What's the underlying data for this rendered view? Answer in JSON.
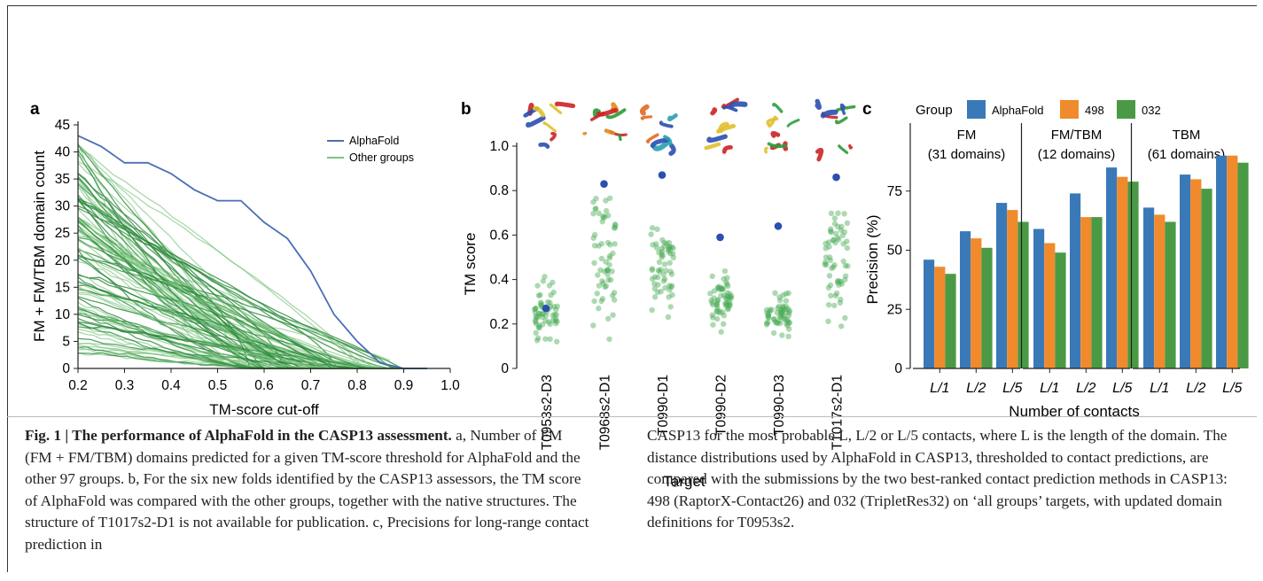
{
  "panels": {
    "a": {
      "label": "a",
      "chart_data": {
        "type": "line",
        "xlabel": "TM-score cut-off",
        "ylabel": "FM + FM/TBM domain count",
        "xlim": [
          0.2,
          1.0
        ],
        "ylim": [
          0,
          45
        ],
        "xticks": [
          "0.2",
          "0.3",
          "0.4",
          "0.5",
          "0.6",
          "0.7",
          "0.8",
          "0.9",
          "1.0"
        ],
        "yticks": [
          "0",
          "5",
          "10",
          "15",
          "20",
          "25",
          "30",
          "35",
          "40",
          "45"
        ],
        "legend": [
          "AlphaFold",
          "Other groups"
        ],
        "series": [
          {
            "name": "AlphaFold",
            "color": "#4a6fb3",
            "x": [
              0.2,
              0.25,
              0.3,
              0.35,
              0.4,
              0.45,
              0.5,
              0.55,
              0.6,
              0.65,
              0.7,
              0.75,
              0.8,
              0.85,
              0.9,
              0.95
            ],
            "y": [
              43,
              41,
              38,
              38,
              36,
              33,
              31,
              31,
              27,
              24,
              18,
              10,
              5,
              1,
              0,
              0
            ]
          }
        ],
        "other_groups": {
          "name": "Other groups",
          "color": "#3a9a45",
          "count": 97,
          "start_range": [
            3,
            42
          ],
          "end_x_range": [
            0.55,
            0.9
          ]
        }
      }
    },
    "b": {
      "label": "b",
      "chart_data": {
        "type": "scatter",
        "xlabel": "Target",
        "ylabel": "TM score",
        "ylim": [
          0,
          1.0
        ],
        "yticks": [
          "0",
          "0.2",
          "0.4",
          "0.6",
          "0.8",
          "1.0"
        ],
        "categories": [
          "T0953s2-D3",
          "T0968s2-D1",
          "T0990-D1",
          "T0990-D2",
          "T0990-D3",
          "T1017s2-D1"
        ],
        "alphafold": [
          0.27,
          0.83,
          0.87,
          0.59,
          0.64,
          0.86
        ],
        "others_range": [
          [
            0.12,
            0.43
          ],
          [
            0.13,
            0.78
          ],
          [
            0.2,
            0.65
          ],
          [
            0.12,
            0.45
          ],
          [
            0.13,
            0.34
          ],
          [
            0.15,
            0.78
          ]
        ],
        "others_center": [
          [
            0.18,
            0.3
          ],
          [
            0.3,
            0.7
          ],
          [
            0.33,
            0.58
          ],
          [
            0.22,
            0.38
          ],
          [
            0.2,
            0.28
          ],
          [
            0.28,
            0.7
          ]
        ],
        "structure_colors": [
          [
            "#c22",
            "#2a4fb0",
            "#e1c030"
          ],
          [
            "#2a9a3a",
            "#e18a20",
            "#c22"
          ],
          [
            "#e16a20",
            "#2a4fb0",
            "#2aa0b0"
          ],
          [
            "#c22",
            "#e1c030",
            "#2a4fb0"
          ],
          [
            "#c22",
            "#2aa040",
            "#e1c030"
          ],
          [
            "#c22",
            "#2a9a3a",
            "#2a4fb0"
          ]
        ],
        "alphafold_color": "#2a4fb0",
        "others_color": "#4aaa55"
      }
    },
    "c": {
      "label": "c",
      "chart_data": {
        "type": "bar",
        "legend_title": "Group",
        "legend": [
          "AlphaFold",
          "498",
          "032"
        ],
        "colors": [
          "#3a79b8",
          "#f08a2c",
          "#4a9a45"
        ],
        "xlabel": "Number of contacts",
        "ylabel": "Precision (%)",
        "ylim": [
          0,
          100
        ],
        "yticks": [
          "0",
          "25",
          "50",
          "75"
        ],
        "categories": [
          "L/1",
          "L/2",
          "L/5"
        ],
        "facets": [
          {
            "title": "FM",
            "subtitle": "(31 domains)",
            "series": [
              {
                "name": "AlphaFold",
                "values": [
                  46,
                  58,
                  70
                ]
              },
              {
                "name": "498",
                "values": [
                  43,
                  55,
                  67
                ]
              },
              {
                "name": "032",
                "values": [
                  40,
                  51,
                  62
                ]
              }
            ]
          },
          {
            "title": "FM/TBM",
            "subtitle": "(12 domains)",
            "series": [
              {
                "name": "AlphaFold",
                "values": [
                  59,
                  74,
                  85
                ]
              },
              {
                "name": "498",
                "values": [
                  53,
                  64,
                  81
                ]
              },
              {
                "name": "032",
                "values": [
                  49,
                  64,
                  79
                ]
              }
            ]
          },
          {
            "title": "TBM",
            "subtitle": "(61 domains)",
            "series": [
              {
                "name": "AlphaFold",
                "values": [
                  68,
                  82,
                  90
                ]
              },
              {
                "name": "498",
                "values": [
                  65,
                  80,
                  90
                ]
              },
              {
                "name": "032",
                "values": [
                  62,
                  76,
                  87
                ]
              }
            ]
          }
        ]
      }
    }
  },
  "caption": {
    "left": [
      {
        "bold": "Fig. 1 | The performance of AlphaFold in the CASP13 assessment. ",
        "text": "a, Number of FM (FM + FM/TBM) domains predicted for a given TM-score threshold for AlphaFold and the other 97 groups. b, For the six new folds identified by the CASP13 assessors, the TM score of AlphaFold was compared with the other groups, together with the native structures. The structure of T1017s2-D1 is not available for publication. c, Precisions for long-range contact prediction in"
      }
    ],
    "right": "CASP13 for the most probable L, L/2 or L/5 contacts, where L is the length of the domain. The distance distributions used by AlphaFold in CASP13, thresholded to contact predictions, are compared with the submissions by the two best-ranked contact prediction methods in CASP13: 498 (RaptorX-Contact26) and 032 (TripletRes32) on ‘all groups’ targets, with updated domain definitions for T0953s2."
  }
}
